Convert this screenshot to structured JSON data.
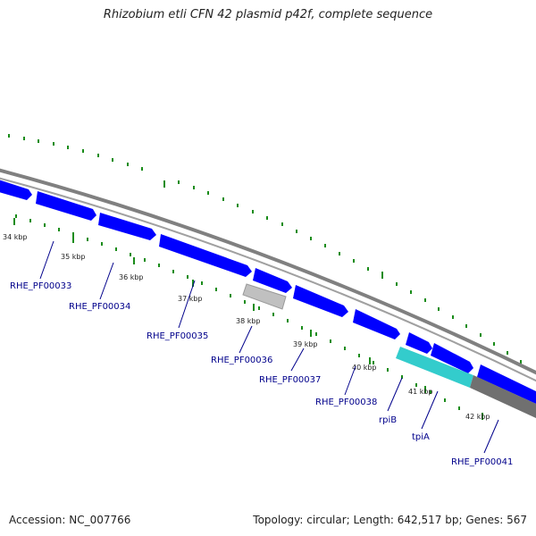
{
  "title": "Rhizobium etli CFN 42 plasmid p42f, complete sequence",
  "footer": {
    "accession": "Accession: NC_007766",
    "summary": "Topology: circular; Length: 642,517 bp; Genes: 567"
  },
  "ticks": [
    "34 kbp",
    "35 kbp",
    "36 kbp",
    "37 kbp",
    "38 kbp",
    "39 kbp",
    "40 kbp",
    "41 kbp",
    "42 kbp"
  ],
  "genes": [
    {
      "label": "RHE_PF00033",
      "color": "#0000ff",
      "strand": "+"
    },
    {
      "label": "RHE_PF00034",
      "color": "#0000ff",
      "strand": "+"
    },
    {
      "label": "RHE_PF00035",
      "color": "#0000ff",
      "strand": "+"
    },
    {
      "label": "RHE_PF00036",
      "color": "#c0c0c0",
      "strand": "-"
    },
    {
      "label": "RHE_PF00037",
      "color": "#0000ff",
      "strand": "+"
    },
    {
      "label": "RHE_PF00038",
      "color": "#0000ff",
      "strand": "+"
    },
    {
      "label": "rpiB",
      "color": "#0000ff",
      "strand": "+"
    },
    {
      "label": "tpiA",
      "color": "#33cccc",
      "strand": "-"
    },
    {
      "label": "RHE_PF00041",
      "color": "#0000ff",
      "strand": "+"
    }
  ],
  "colors": {
    "backbone": "#808080",
    "tick_marks": "#1a8c1a",
    "label_text": "#00008b",
    "rrna_band": "#707070"
  }
}
